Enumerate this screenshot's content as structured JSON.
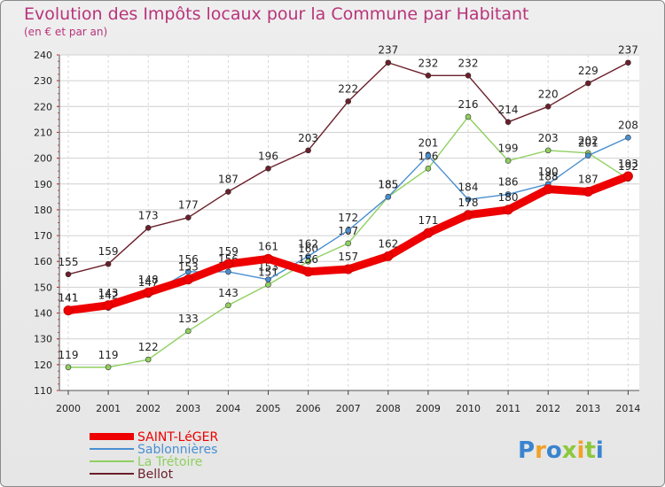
{
  "chart_data": {
    "type": "line",
    "title": "Evolution des Impôts locaux pour la Commune par Habitant",
    "subtitle": "(en € et par an)",
    "xlabel": "",
    "ylabel": "",
    "ylim": [
      110,
      240
    ],
    "yticks": [
      110,
      120,
      130,
      140,
      150,
      160,
      170,
      180,
      190,
      200,
      210,
      220,
      230,
      240
    ],
    "categories": [
      "2000",
      "2001",
      "2002",
      "2003",
      "2004",
      "2005",
      "2006",
      "2007",
      "2008",
      "2009",
      "2010",
      "2011",
      "2012",
      "2013",
      "2014"
    ],
    "grid": true,
    "legend_position": "bottom-left",
    "series": [
      {
        "name": "SAINT-LéGER",
        "color": "#ee0000",
        "values": [
          141,
          143,
          148,
          153,
          159,
          161,
          156,
          157,
          162,
          171,
          178,
          180,
          188,
          187,
          193
        ]
      },
      {
        "name": "Sablonnières",
        "color": "#4a8fd0",
        "values": [
          141,
          142,
          147,
          156,
          156,
          153,
          162,
          172,
          185,
          201,
          184,
          186,
          190,
          201,
          208
        ]
      },
      {
        "name": "La Trétoire",
        "color": "#8fd060",
        "values": [
          119,
          119,
          122,
          133,
          143,
          151,
          160,
          167,
          185,
          196,
          216,
          199,
          203,
          202,
          192
        ]
      },
      {
        "name": "Bellot",
        "color": "#6b1f2a",
        "values": [
          155,
          159,
          173,
          177,
          187,
          196,
          203,
          222,
          237,
          232,
          232,
          214,
          220,
          229,
          237
        ]
      }
    ]
  },
  "logo": {
    "letters": [
      "P",
      "r",
      "o",
      "x",
      "i",
      "t",
      "i"
    ],
    "colors": [
      "#3a84cf",
      "#f0a22a",
      "#3a84cf",
      "#8cc83c",
      "#f0a22a",
      "#8cc83c",
      "#3a84cf"
    ]
  }
}
